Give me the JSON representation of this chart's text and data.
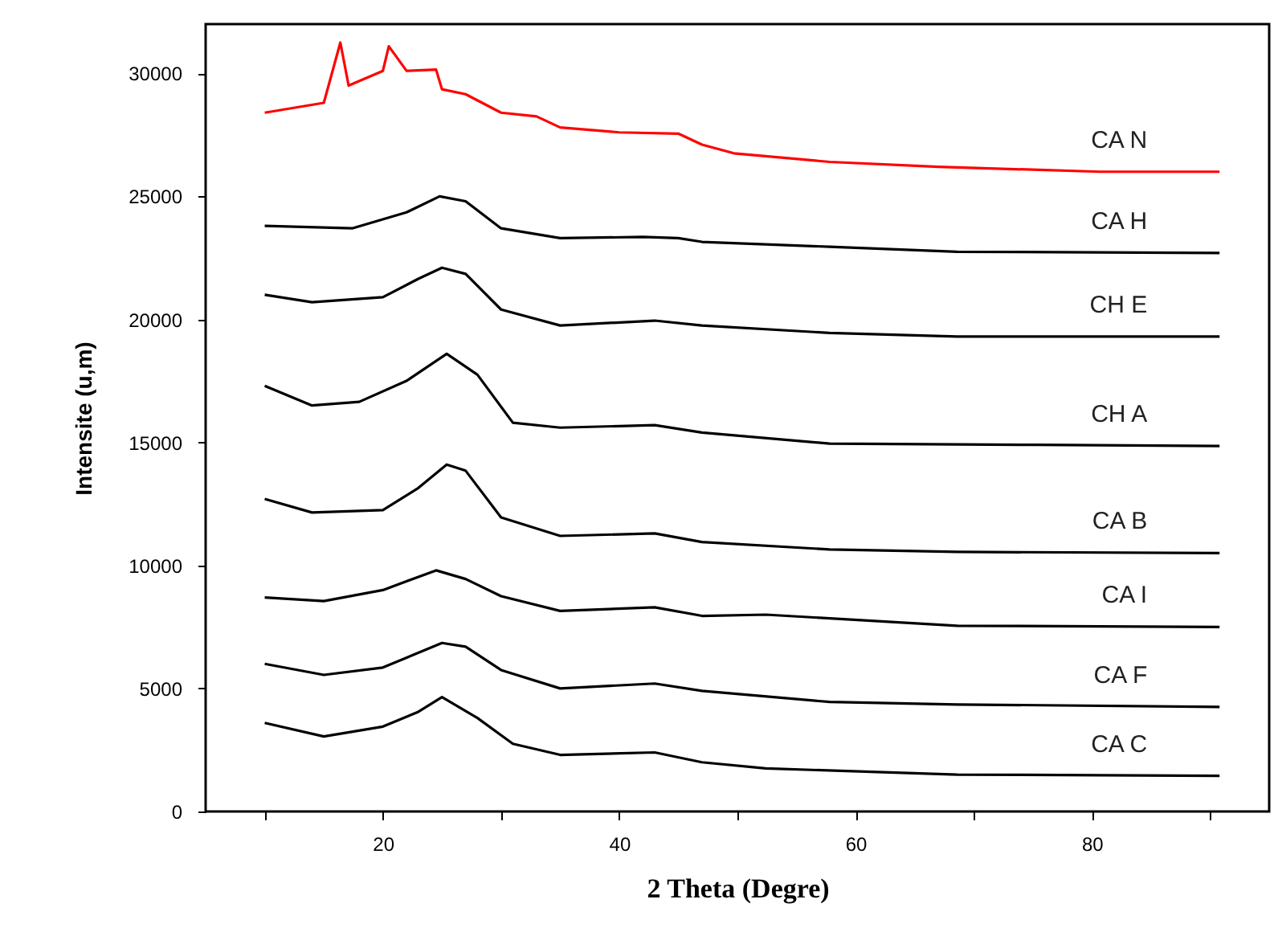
{
  "chart_data": {
    "type": "line",
    "xlabel": "2 Theta (Degre)",
    "ylabel": "Intensite (u,m)",
    "xlim": [
      5,
      95
    ],
    "ylim": [
      0,
      32000
    ],
    "xticks": [
      {
        "value": 10,
        "label": null
      },
      20,
      {
        "value": 30,
        "label": null
      },
      40,
      {
        "value": 50,
        "label": null
      },
      60,
      {
        "value": 70,
        "label": null
      },
      80,
      {
        "value": 90,
        "label": null
      }
    ],
    "yticks": [
      0,
      5000,
      10000,
      15000,
      20000,
      25000,
      30000
    ],
    "grid": false,
    "marker": "none",
    "line_style": "solid",
    "series": [
      {
        "name": "CA N",
        "color": "#ff0000",
        "x": [
          10,
          15,
          16.4,
          17.1,
          20,
          20.5,
          22,
          24.5,
          25,
          27,
          30,
          33,
          35,
          40,
          45,
          47,
          49.7,
          57.8,
          67,
          80.7,
          90.8
        ],
        "values": [
          28400,
          28800,
          31250,
          29500,
          30100,
          31100,
          30100,
          30150,
          29350,
          29150,
          28400,
          28250,
          27800,
          27600,
          27550,
          27100,
          26750,
          26400,
          26200,
          26000,
          26000
        ]
      },
      {
        "name": "CA H",
        "color": "#000000",
        "x": [
          10,
          17.4,
          22,
          24.8,
          27,
          30,
          35,
          42,
          45,
          47,
          57.8,
          68.6,
          90.8
        ],
        "values": [
          23800,
          23700,
          24350,
          25000,
          24800,
          23700,
          23300,
          23350,
          23300,
          23150,
          22950,
          22750,
          22700
        ]
      },
      {
        "name": "CH E",
        "color": "#000000",
        "x": [
          10,
          14,
          20,
          23,
          25,
          27,
          30,
          35,
          43,
          47,
          57.8,
          68.6,
          90.8
        ],
        "values": [
          21000,
          20700,
          20900,
          21650,
          22100,
          21850,
          20400,
          19750,
          19950,
          19750,
          19450,
          19300,
          19300
        ]
      },
      {
        "name": "CH A",
        "color": "#000000",
        "x": [
          10,
          14,
          18,
          22,
          25.4,
          28,
          31,
          35,
          43,
          47,
          57.8,
          75.3,
          90.8
        ],
        "values": [
          17300,
          16500,
          16650,
          17500,
          18600,
          17750,
          15800,
          15600,
          15700,
          15400,
          14950,
          14900,
          14850
        ]
      },
      {
        "name": "CA B",
        "color": "#000000",
        "x": [
          10,
          14,
          20,
          23,
          25.4,
          27,
          30,
          35,
          43,
          47,
          57.8,
          68.6,
          90.8
        ],
        "values": [
          12700,
          12150,
          12250,
          13150,
          14100,
          13850,
          11950,
          11200,
          11300,
          10950,
          10650,
          10550,
          10500
        ]
      },
      {
        "name": "CA I",
        "color": "#000000",
        "x": [
          10,
          15,
          20,
          24.5,
          27,
          30,
          35,
          43,
          47,
          52.4,
          68.6,
          90.8
        ],
        "values": [
          8700,
          8550,
          9000,
          9800,
          9450,
          8750,
          8150,
          8300,
          7950,
          8000,
          7550,
          7500
        ]
      },
      {
        "name": "CA F",
        "color": "#000000",
        "x": [
          10,
          15,
          20,
          25,
          27,
          30,
          35,
          43,
          47,
          57.8,
          68.6,
          90.8
        ],
        "values": [
          6000,
          5550,
          5850,
          6850,
          6700,
          5750,
          5000,
          5200,
          4900,
          4450,
          4350,
          4250
        ]
      },
      {
        "name": "CA C",
        "color": "#000000",
        "x": [
          10,
          15,
          20,
          23,
          25,
          28,
          31,
          35,
          43,
          47,
          52.4,
          68.6,
          90.8
        ],
        "values": [
          3600,
          3050,
          3450,
          4050,
          4650,
          3800,
          2750,
          2300,
          2400,
          2000,
          1750,
          1500,
          1450
        ]
      }
    ]
  }
}
